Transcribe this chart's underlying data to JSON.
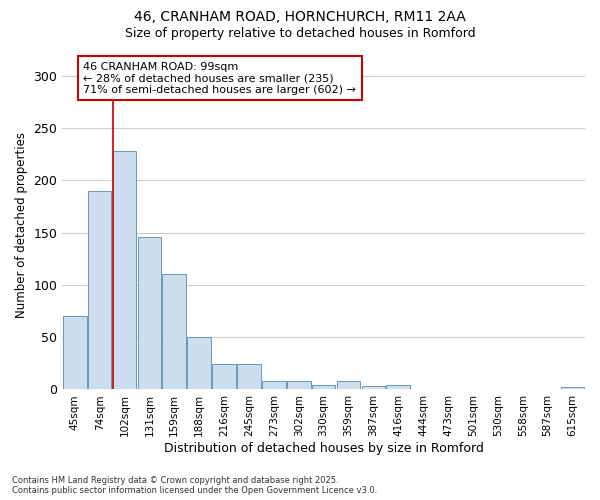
{
  "title_line1": "46, CRANHAM ROAD, HORNCHURCH, RM11 2AA",
  "title_line2": "Size of property relative to detached houses in Romford",
  "xlabel": "Distribution of detached houses by size in Romford",
  "ylabel": "Number of detached properties",
  "categories": [
    "45sqm",
    "74sqm",
    "102sqm",
    "131sqm",
    "159sqm",
    "188sqm",
    "216sqm",
    "245sqm",
    "273sqm",
    "302sqm",
    "330sqm",
    "359sqm",
    "387sqm",
    "416sqm",
    "444sqm",
    "473sqm",
    "501sqm",
    "530sqm",
    "558sqm",
    "587sqm",
    "615sqm"
  ],
  "values": [
    70,
    190,
    228,
    146,
    110,
    50,
    24,
    24,
    8,
    8,
    4,
    8,
    3,
    4,
    0,
    0,
    0,
    0,
    0,
    0,
    2
  ],
  "bar_color": "#ccdded",
  "bar_edge_color": "#6699bb",
  "bar_edge_width": 0.7,
  "vline_index": 2,
  "vline_color": "#cc0000",
  "annotation_text": "46 CRANHAM ROAD: 99sqm\n← 28% of detached houses are smaller (235)\n71% of semi-detached houses are larger (602) →",
  "annotation_box_color": "#cc0000",
  "annotation_bg": "#ffffff",
  "ylim": [
    0,
    315
  ],
  "yticks": [
    0,
    50,
    100,
    150,
    200,
    250,
    300
  ],
  "background_color": "#ffffff",
  "grid_color": "#cccccc",
  "footnote": "Contains HM Land Registry data © Crown copyright and database right 2025.\nContains public sector information licensed under the Open Government Licence v3.0."
}
